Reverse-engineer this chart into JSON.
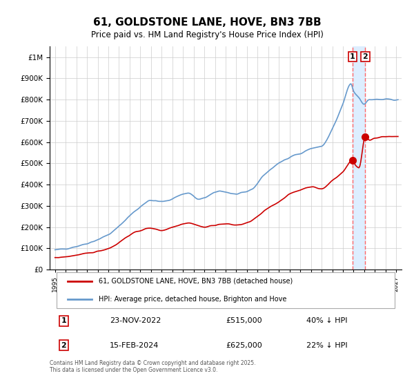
{
  "title": "61, GOLDSTONE LANE, HOVE, BN3 7BB",
  "subtitle": "Price paid vs. HM Land Registry's House Price Index (HPI)",
  "legend_label_red": "61, GOLDSTONE LANE, HOVE, BN3 7BB (detached house)",
  "legend_label_blue": "HPI: Average price, detached house, Brighton and Hove",
  "transaction1_date": "23-NOV-2022",
  "transaction1_price": 515000,
  "transaction1_pct": "40% ↓ HPI",
  "transaction2_date": "15-FEB-2024",
  "transaction2_price": 625000,
  "transaction2_pct": "22% ↓ HPI",
  "footer": "Contains HM Land Registry data © Crown copyright and database right 2025.\nThis data is licensed under the Open Government Licence v3.0.",
  "red_color": "#cc0000",
  "blue_color": "#6699cc",
  "background_color": "#ffffff",
  "grid_color": "#cccccc",
  "highlight_color": "#ddeeff",
  "dashed_line_color": "#ff6666",
  "ylim_max": 1050000,
  "xlim_min": 1994.5,
  "xlim_max": 2027.5,
  "transaction1_year": 2022.9,
  "transaction2_year": 2024.1
}
